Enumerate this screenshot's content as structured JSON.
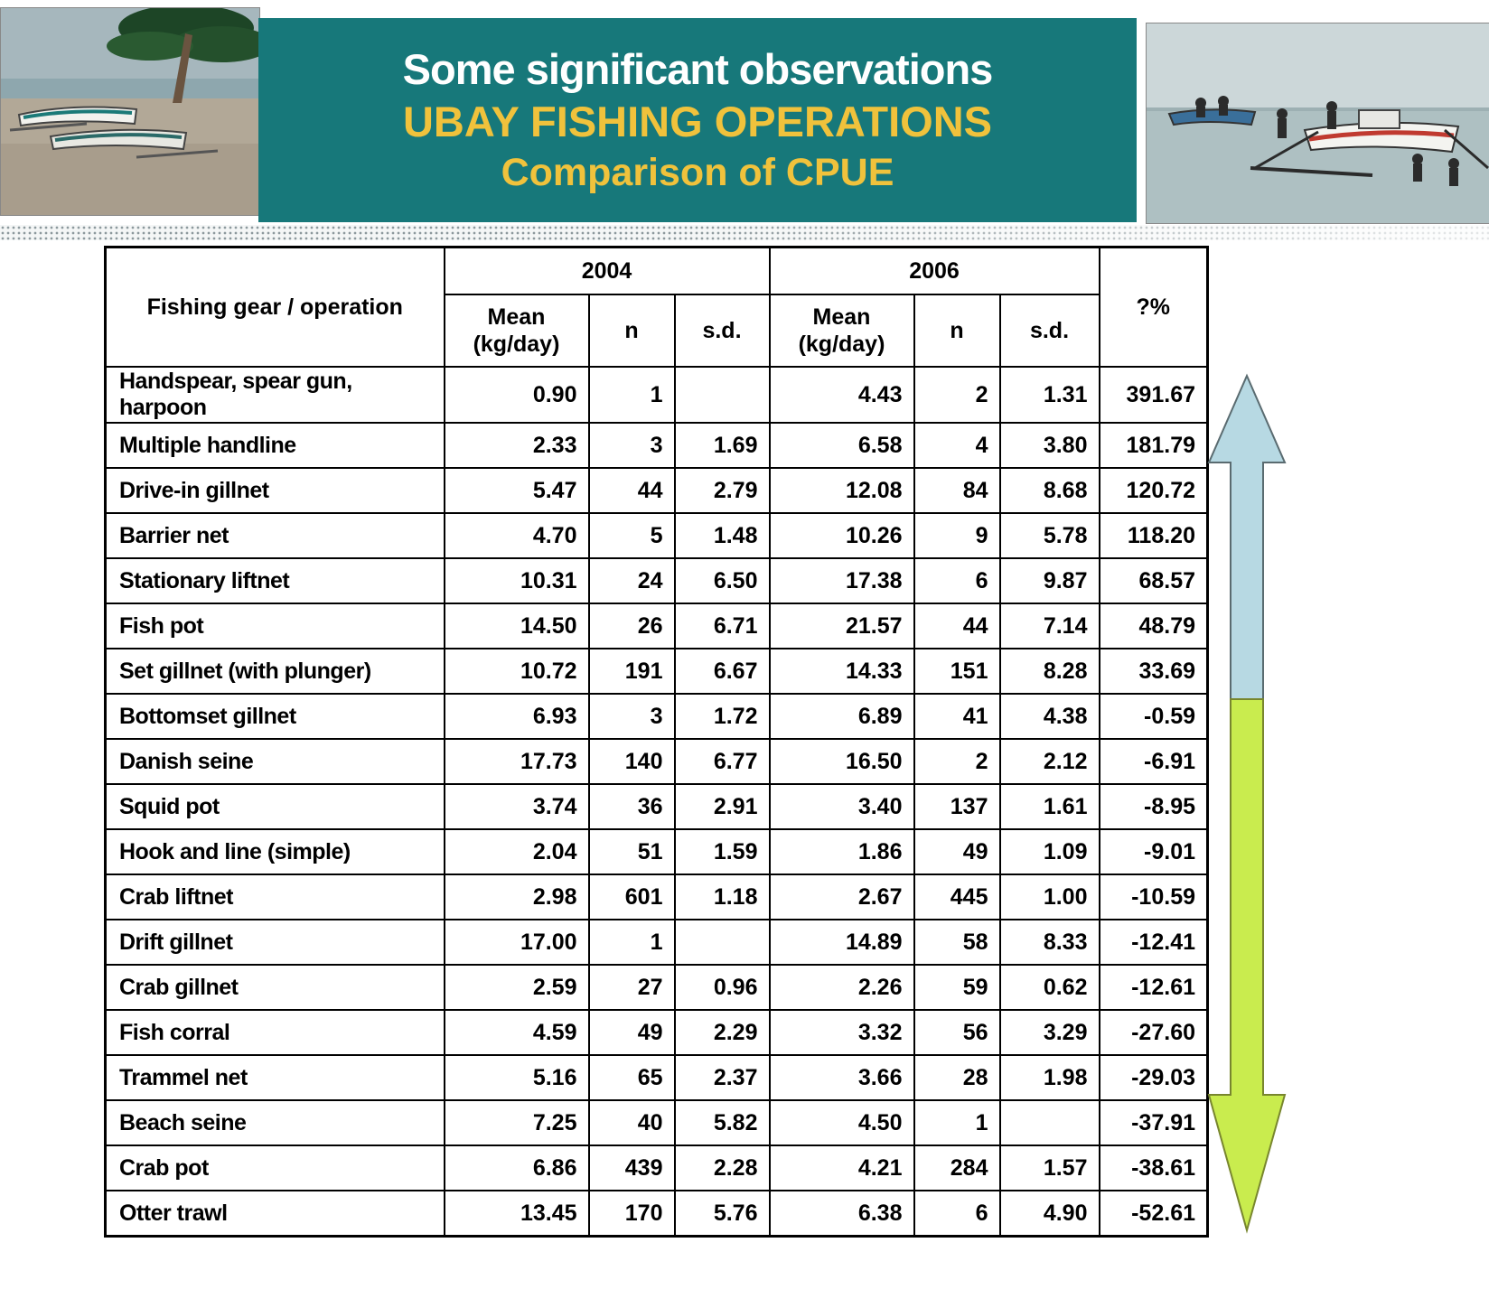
{
  "title": {
    "line1": "Some significant observations",
    "line2": "UBAY FISHING OPERATIONS",
    "line3": "Comparison of CPUE"
  },
  "table": {
    "gear_header": "Fishing gear / operation",
    "year_groups": [
      "2004",
      "2006"
    ],
    "sub_headers": [
      "Mean (kg/day)",
      "n",
      "s.d."
    ],
    "change_header": "?%",
    "rows": [
      {
        "gear": "Handspear, spear gun, harpoon",
        "mean2004": "0.90",
        "n2004": "1",
        "sd2004": "",
        "mean2006": "4.43",
        "n2006": "2",
        "sd2006": "1.31",
        "change": "391.67"
      },
      {
        "gear": "Multiple handline",
        "mean2004": "2.33",
        "n2004": "3",
        "sd2004": "1.69",
        "mean2006": "6.58",
        "n2006": "4",
        "sd2006": "3.80",
        "change": "181.79"
      },
      {
        "gear": "Drive-in gillnet",
        "mean2004": "5.47",
        "n2004": "44",
        "sd2004": "2.79",
        "mean2006": "12.08",
        "n2006": "84",
        "sd2006": "8.68",
        "change": "120.72"
      },
      {
        "gear": "Barrier net",
        "mean2004": "4.70",
        "n2004": "5",
        "sd2004": "1.48",
        "mean2006": "10.26",
        "n2006": "9",
        "sd2006": "5.78",
        "change": "118.20"
      },
      {
        "gear": "Stationary liftnet",
        "mean2004": "10.31",
        "n2004": "24",
        "sd2004": "6.50",
        "mean2006": "17.38",
        "n2006": "6",
        "sd2006": "9.87",
        "change": "68.57"
      },
      {
        "gear": "Fish pot",
        "mean2004": "14.50",
        "n2004": "26",
        "sd2004": "6.71",
        "mean2006": "21.57",
        "n2006": "44",
        "sd2006": "7.14",
        "change": "48.79"
      },
      {
        "gear": "Set gillnet (with plunger)",
        "mean2004": "10.72",
        "n2004": "191",
        "sd2004": "6.67",
        "mean2006": "14.33",
        "n2006": "151",
        "sd2006": "8.28",
        "change": "33.69"
      },
      {
        "gear": "Bottomset gillnet",
        "mean2004": "6.93",
        "n2004": "3",
        "sd2004": "1.72",
        "mean2006": "6.89",
        "n2006": "41",
        "sd2006": "4.38",
        "change": "-0.59"
      },
      {
        "gear": "Danish seine",
        "mean2004": "17.73",
        "n2004": "140",
        "sd2004": "6.77",
        "mean2006": "16.50",
        "n2006": "2",
        "sd2006": "2.12",
        "change": "-6.91"
      },
      {
        "gear": "Squid pot",
        "mean2004": "3.74",
        "n2004": "36",
        "sd2004": "2.91",
        "mean2006": "3.40",
        "n2006": "137",
        "sd2006": "1.61",
        "change": "-8.95"
      },
      {
        "gear": "Hook and line (simple)",
        "mean2004": "2.04",
        "n2004": "51",
        "sd2004": "1.59",
        "mean2006": "1.86",
        "n2006": "49",
        "sd2006": "1.09",
        "change": "-9.01"
      },
      {
        "gear": "Crab liftnet",
        "mean2004": "2.98",
        "n2004": "601",
        "sd2004": "1.18",
        "mean2006": "2.67",
        "n2006": "445",
        "sd2006": "1.00",
        "change": "-10.59"
      },
      {
        "gear": "Drift gillnet",
        "mean2004": "17.00",
        "n2004": "1",
        "sd2004": "",
        "mean2006": "14.89",
        "n2006": "58",
        "sd2006": "8.33",
        "change": "-12.41"
      },
      {
        "gear": "Crab gillnet",
        "mean2004": "2.59",
        "n2004": "27",
        "sd2004": "0.96",
        "mean2006": "2.26",
        "n2006": "59",
        "sd2006": "0.62",
        "change": "-12.61"
      },
      {
        "gear": "Fish corral",
        "mean2004": "4.59",
        "n2004": "49",
        "sd2004": "2.29",
        "mean2006": "3.32",
        "n2006": "56",
        "sd2006": "3.29",
        "change": "-27.60"
      },
      {
        "gear": "Trammel net",
        "mean2004": "5.16",
        "n2004": "65",
        "sd2004": "2.37",
        "mean2006": "3.66",
        "n2006": "28",
        "sd2006": "1.98",
        "change": "-29.03"
      },
      {
        "gear": "Beach seine",
        "mean2004": "7.25",
        "n2004": "40",
        "sd2004": "5.82",
        "mean2006": "4.50",
        "n2006": "1",
        "sd2006": "",
        "change": "-37.91"
      },
      {
        "gear": "Crab pot",
        "mean2004": "6.86",
        "n2004": "439",
        "sd2004": "2.28",
        "mean2006": "4.21",
        "n2006": "284",
        "sd2006": "1.57",
        "change": "-38.61"
      },
      {
        "gear": "Otter trawl",
        "mean2004": "13.45",
        "n2004": "170",
        "sd2004": "5.76",
        "mean2006": "6.38",
        "n2006": "6",
        "sd2006": "4.90",
        "change": "-52.61"
      }
    ]
  },
  "arrows": {
    "up_color": "#b7d9e3",
    "down_color": "#c9ec4e",
    "up_outline": "#5a6b70",
    "down_outline": "#78862e"
  }
}
